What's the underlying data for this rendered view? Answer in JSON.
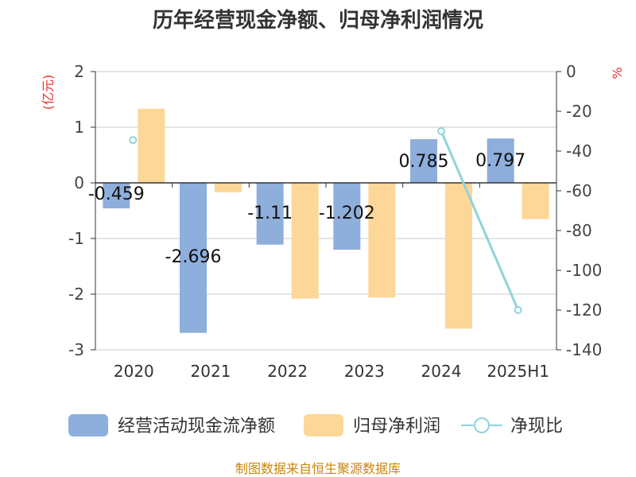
{
  "chart_data": {
    "type": "bar",
    "title": "历年经营现金净额、归母净利润情况",
    "categories": [
      "2020",
      "2021",
      "2022",
      "2023",
      "2024",
      "2025H1"
    ],
    "y_left": {
      "unit": "(亿元)",
      "ylim": [
        -3,
        2
      ],
      "ticks": [
        2,
        1,
        0,
        -1,
        -2,
        -3
      ]
    },
    "y_right": {
      "unit": "%",
      "ylim": [
        -140,
        0
      ],
      "ticks": [
        0,
        -20,
        -40,
        -60,
        -80,
        -100,
        -120,
        -140
      ]
    },
    "series": [
      {
        "name": "经营活动现金流净额",
        "type": "bar",
        "axis": "left",
        "color": "#8eaedb",
        "values": [
          -0.459,
          -2.696,
          -1.11,
          -1.202,
          0.785,
          0.797
        ],
        "labels": [
          "-0.459",
          "-2.696",
          "-1.11",
          "-1.202",
          "0.785",
          "0.797"
        ]
      },
      {
        "name": "归母净利润",
        "type": "bar",
        "axis": "left",
        "color": "#fdd797",
        "values": [
          1.33,
          -0.17,
          -2.08,
          -2.06,
          -2.62,
          -0.65
        ]
      },
      {
        "name": "净现比",
        "type": "line",
        "axis": "right",
        "color": "#8fd3dc",
        "values": [
          -34.5,
          null,
          null,
          null,
          -30,
          -120
        ]
      }
    ],
    "grid": true,
    "legend": "bottom"
  },
  "source": "制图数据来自恒生聚源数据库"
}
